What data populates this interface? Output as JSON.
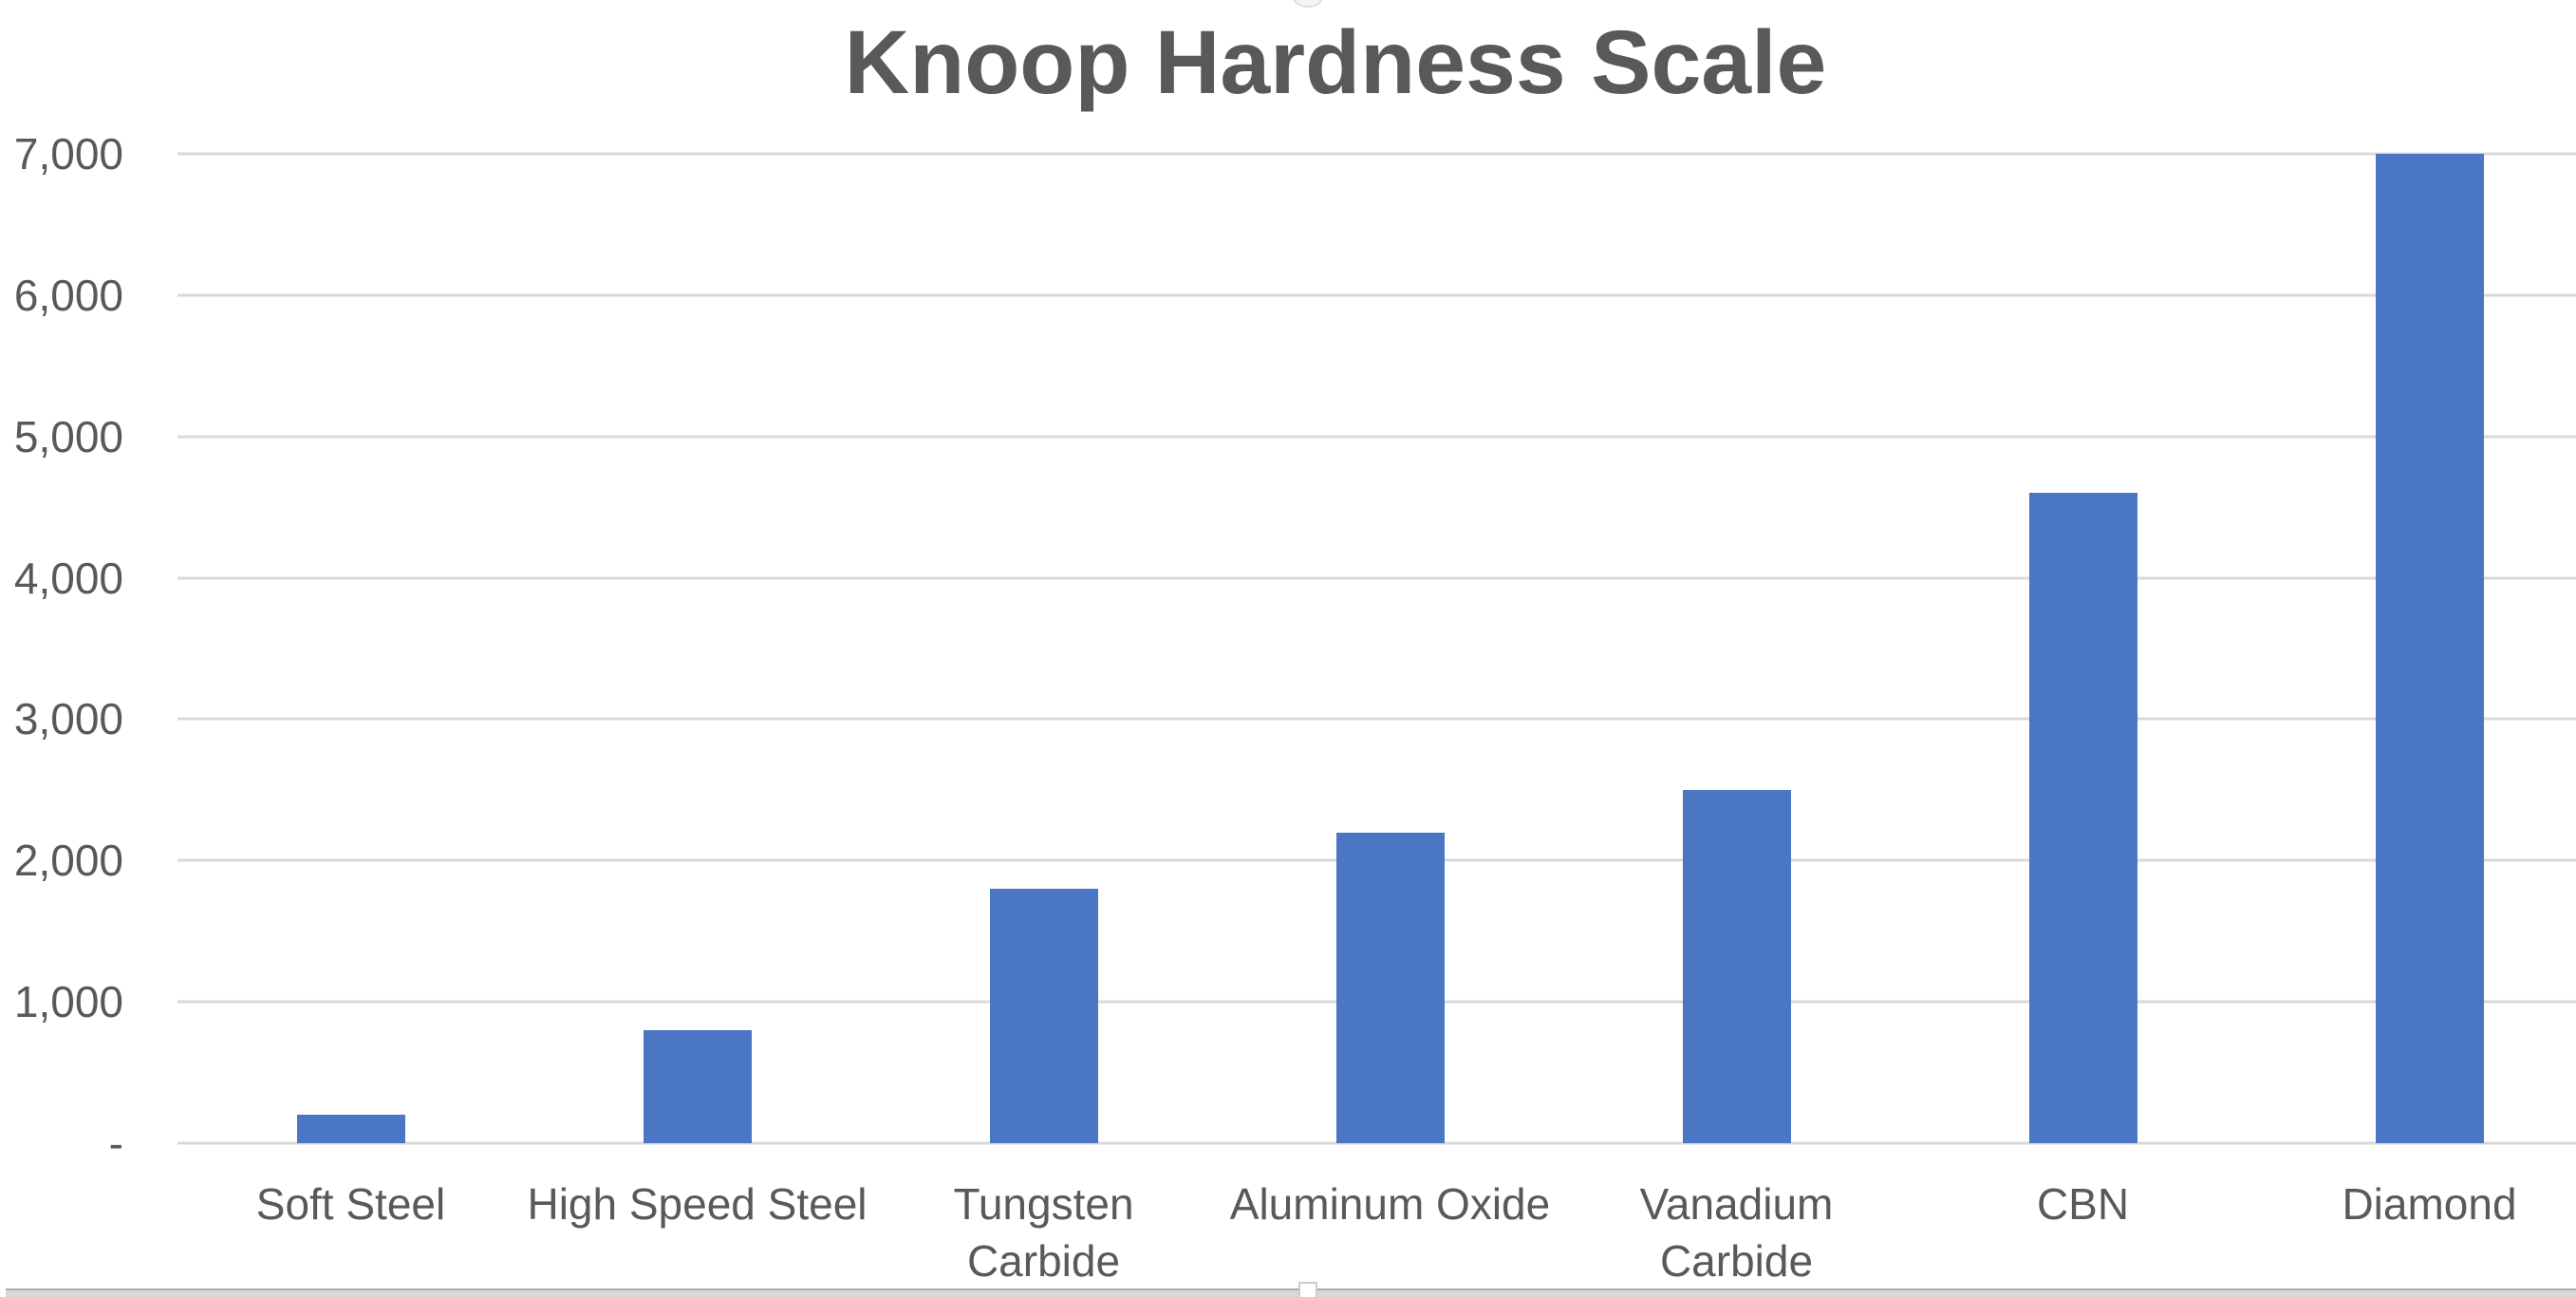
{
  "chart_data": {
    "type": "bar",
    "title": "Knoop Hardness Scale",
    "categories": [
      "Soft Steel",
      "High Speed Steel",
      "Tungsten Carbide",
      "Aluminum Oxide",
      "Vanadium Carbide",
      "CBN",
      "Diamond"
    ],
    "category_lines": [
      [
        "Soft Steel"
      ],
      [
        "High Speed Steel"
      ],
      [
        "Tungsten",
        "Carbide"
      ],
      [
        "Aluminum Oxide"
      ],
      [
        "Vanadium",
        "Carbide"
      ],
      [
        "CBN"
      ],
      [
        "Diamond"
      ]
    ],
    "values": [
      200,
      800,
      1800,
      2200,
      2500,
      4600,
      7000
    ],
    "xlabel": "",
    "ylabel": "",
    "ylim": [
      0,
      7000
    ],
    "yticks": [
      {
        "label": "7,000",
        "value": 7000
      },
      {
        "label": "6,000",
        "value": 6000
      },
      {
        "label": "5,000",
        "value": 5000
      },
      {
        "label": "4,000",
        "value": 4000
      },
      {
        "label": "3,000",
        "value": 3000
      },
      {
        "label": "2,000",
        "value": 2000
      },
      {
        "label": "1,000",
        "value": 1000
      },
      {
        "label": "-",
        "value": 0
      }
    ],
    "grid": true,
    "legend": false,
    "colors": {
      "bar": "#4A76C4",
      "gridline": "#D9D9D9",
      "axis_text": "#595959",
      "title_text": "#595959"
    }
  },
  "ui": {
    "background": "#FFFFFF",
    "bottom_strip_fill": "#D8D8D8",
    "bottom_strip_edge": "#ABABAB",
    "handle_fill": "#FFFFFF",
    "handle_border": "#CCCCCC"
  }
}
